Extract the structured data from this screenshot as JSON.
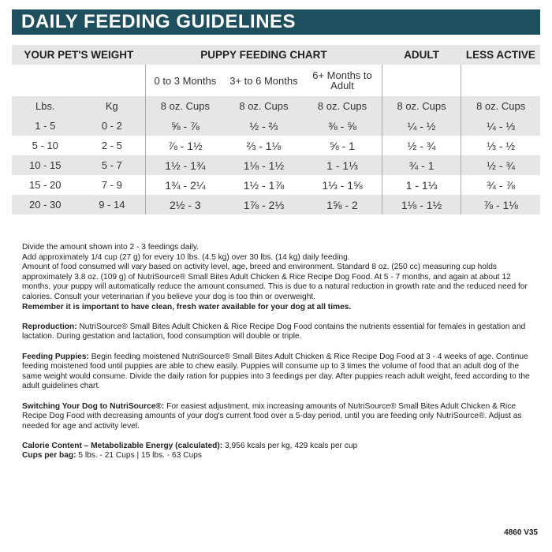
{
  "title": "DAILY FEEDING GUIDELINES",
  "table": {
    "h1": [
      "YOUR PET'S WEIGHT",
      "PUPPY FEEDING CHART",
      "ADULT",
      "LESS ACTIVE"
    ],
    "h2": [
      "0 to 3 Months",
      "3+ to 6 Months",
      "6+ Months to Adult"
    ],
    "h3": [
      "Lbs.",
      "Kg",
      "8 oz. Cups",
      "8 oz. Cups",
      "8 oz. Cups",
      "8 oz. Cups",
      "8 oz. Cups"
    ],
    "rows": [
      [
        "1 - 5",
        "0 - 2",
        "⅝ - ⅞",
        "½ - ⅔",
        "⅜ - ⅝",
        "¼ - ½",
        "¼ - ⅓"
      ],
      [
        "5 - 10",
        "2 - 5",
        "⅞ - 1½",
        "⅔ - 1⅛",
        "⅝ - 1",
        "½ - ¾",
        "⅓ - ½"
      ],
      [
        "10 - 15",
        "5 - 7",
        "1½ - 1¾",
        "1⅛ - 1½",
        "1 - 1⅓",
        "¾ - 1",
        "½ - ¾"
      ],
      [
        "15 - 20",
        "7 - 9",
        "1¾ - 2¼",
        "1½ - 1⅞",
        "1⅓ - 1⅝",
        "1 - 1⅓",
        "¾ - ⅞"
      ],
      [
        "20 - 30",
        "9 - 14",
        "2½ - 3",
        "1⅞ - 2⅓",
        "1⅝ - 2",
        "1⅛ - 1½",
        "⅞ - 1⅛"
      ]
    ]
  },
  "text": {
    "p1": "Divide the amount shown into 2 - 3 feedings daily.",
    "p2": "Add approximately 1/4 cup (27 g) for every 10 lbs. (4.5 kg) over 30 lbs. (14 kg) daily feeding.",
    "p3": "Amount of food consumed will vary based on activity level, age, breed and environment. Standard 8 oz. (250 cc) measuring cup holds approximately 3.8 oz. (109 g) of NutriSource® Small Bites Adult Chicken & Rice Recipe Dog Food. At 5 - 7 months, and again at about 12 months, your puppy will automatically reduce the amount consumed. This is due to a natural reduction in growth rate and the reduced need for calories. Consult your veterinarian if you believe your dog is too thin or overweight.",
    "p4": "Remember it is important to have clean, fresh water available for your dog at all times.",
    "repro_label": "Reproduction:",
    "repro": " NutriSource® Small Bites Adult Chicken & Rice Recipe Dog Food contains the nutrients essential for females in gestation and lactation. During gestation and lactation, food consumption will double or triple.",
    "puppy_label": "Feeding Puppies:",
    "puppy": " Begin feeding moistened NutriSource® Small Bites Adult Chicken & Rice Recipe Dog Food at 3 - 4 weeks of age. Continue feeding moistened food until puppies are able to chew easily. Puppies will consume up to 3 times the volume of food that an adult dog of the same weight would consume. Divide the daily ration for puppies into 3 feedings per day. After puppies reach adult weight, feed according to the adult guidelines chart.",
    "switch_label": "Switching Your Dog to NutriSource®:",
    "switch": " For easiest adjustment, mix increasing amounts of NutriSource® Small Bites Adult Chicken & Rice Recipe Dog Food with decreasing amounts of your dog's current food over a 5-day period, until you are feeding only NutriSource®. Adjust as needed for age and activity level.",
    "cal_label": "Calorie Content – Metabolizable Energy (calculated):",
    "cal": " 3,956 kcals per kg, 429 kcals per cup",
    "cups_label": "Cups per bag:",
    "cups": " 5 lbs. - 21 Cups  |  15 lbs. - 63 Cups"
  },
  "code": "4860 V35"
}
